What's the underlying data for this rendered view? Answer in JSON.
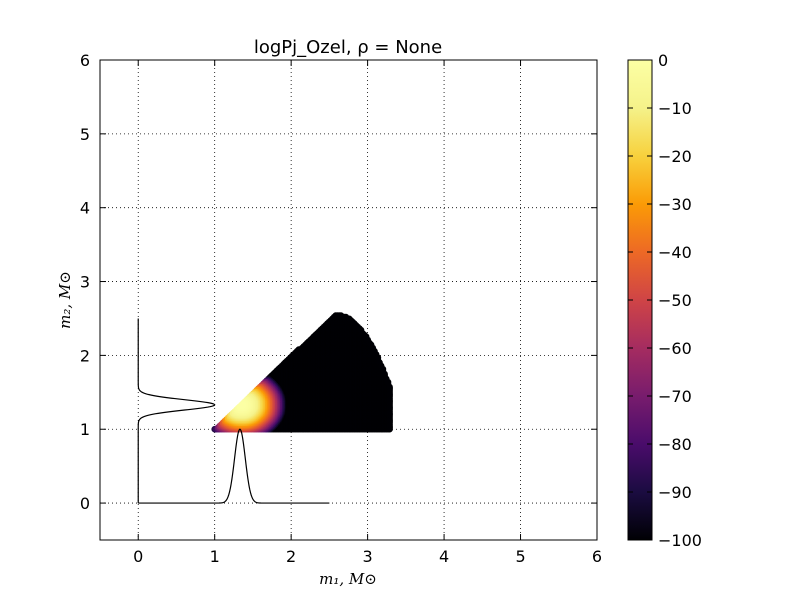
{
  "chart_data": {
    "type": "scatter",
    "title": "logPj_Ozel, ρ = None",
    "xlabel": "m₁, M⊙",
    "ylabel": "m₂, M⊙",
    "xlim": [
      -0.5,
      6
    ],
    "ylim": [
      -0.5,
      6
    ],
    "xticks": [
      "0",
      "1",
      "2",
      "3",
      "4",
      "5",
      "6"
    ],
    "yticks": [
      "0",
      "1",
      "2",
      "3",
      "4",
      "5",
      "6"
    ],
    "grid": true,
    "colorbar": {
      "range": [
        -100,
        0
      ],
      "ticks": [
        "0",
        "−10",
        "−20",
        "−30",
        "−40",
        "−50",
        "−60",
        "−70",
        "−80",
        "−90",
        "−100"
      ],
      "colormap": "inferno"
    },
    "scatter_region": {
      "m1_min": 1.0,
      "m1_max": 3.3,
      "m2_min": 1.0,
      "m2_max": 2.55,
      "peak_m1": 1.35,
      "peak_m2": 1.33
    },
    "marginal_curves": [
      {
        "axis": "m1",
        "baseline": 0,
        "mean": 1.33,
        "sigma": 0.07,
        "peak_height": 1.0,
        "range": [
          0,
          2.5
        ]
      },
      {
        "axis": "m2",
        "baseline": 0,
        "mean": 1.33,
        "sigma": 0.07,
        "peak_height": 1.0,
        "range": [
          0,
          2.5
        ]
      }
    ]
  }
}
